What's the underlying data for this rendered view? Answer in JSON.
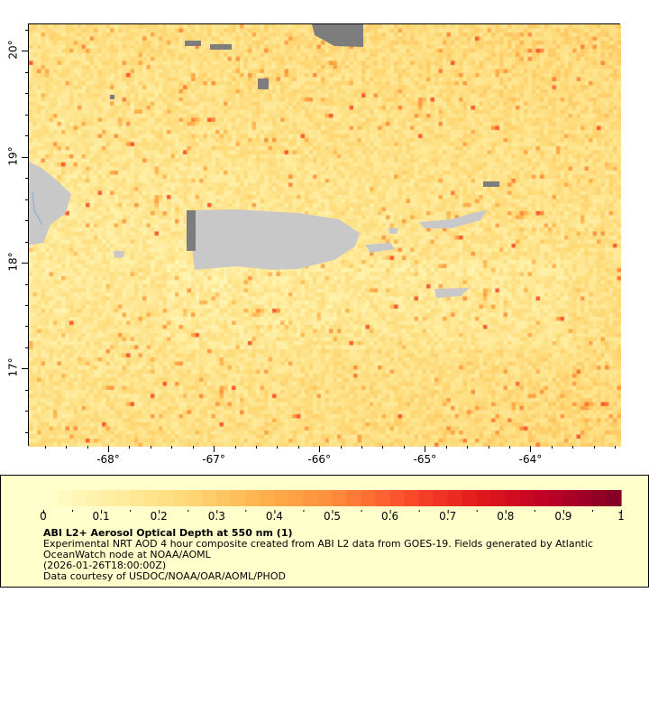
{
  "map": {
    "lon_range": [
      -68.76,
      -63.15
    ],
    "lat_range": [
      16.27,
      20.26
    ],
    "lon_ticks": [
      -68,
      -67,
      -66,
      -65,
      -64
    ],
    "lon_tick_labels": [
      "-68°",
      "-67°",
      "-66°",
      "-65°",
      "-64°"
    ],
    "lat_ticks": [
      20,
      19,
      18,
      17
    ],
    "lat_tick_labels": [
      "20°",
      "19°",
      "18°",
      "17°"
    ],
    "colors": {
      "land": "#c8c8c8",
      "no_data": "#7d7d7d",
      "frame": "#000000"
    }
  },
  "legend": {
    "colorbar": {
      "min": 0,
      "max": 1,
      "steps": 40,
      "tick_labels": [
        "0",
        "0.1",
        "0.2",
        "0.3",
        "0.4",
        "0.5",
        "0.6",
        "0.7",
        "0.8",
        "0.9",
        "1"
      ],
      "colors": [
        "#ffffcc",
        "#ffeda0",
        "#fed976",
        "#feb24c",
        "#fd8d3c",
        "#fc4e2a",
        "#e31a1c",
        "#bd0026",
        "#800026"
      ]
    },
    "title": "ABI L2+ Aerosol Optical Depth at 550 nm (1)",
    "line1": "Experimental NRT AOD 4 hour composite created from ABI L2 data from GOES-19. Fields generated by Atlantic",
    "line2": "OceanWatch node at NOAA/AOML",
    "line3": "(2026-01-26T18:00:00Z)",
    "line4": "Data courtesy of USDOC/NOAA/OAR/AOML/PHOD",
    "background": "#ffffcc"
  }
}
